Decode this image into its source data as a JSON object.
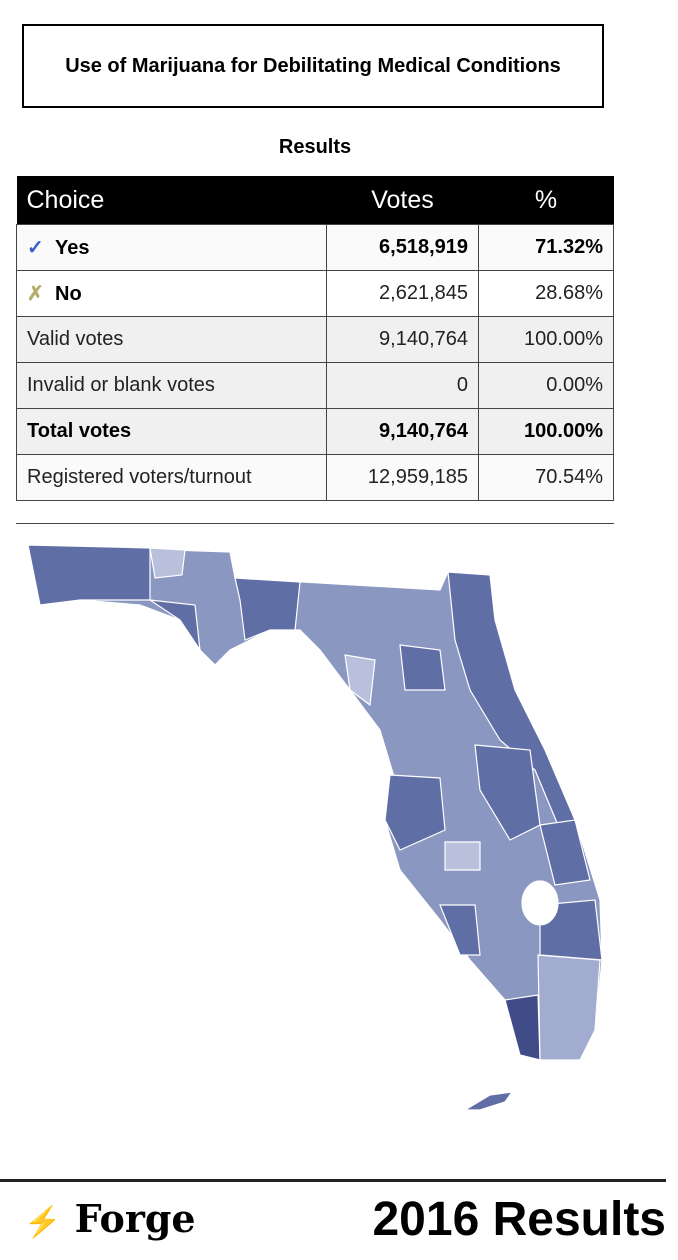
{
  "header": {
    "title": "Use of Marijuana for Debilitating Medical Conditions",
    "caption": "Results"
  },
  "table": {
    "columns": [
      "Choice",
      "Votes",
      "%"
    ],
    "rows": [
      [
        "Yes",
        "6,518,919",
        "71.32%"
      ],
      [
        "No",
        "2,621,845",
        "28.68%"
      ],
      [
        "Valid votes",
        "9,140,764",
        "100.00%"
      ],
      [
        "Invalid or blank votes",
        "0",
        "0.00%"
      ],
      [
        "Total votes",
        "9,140,764",
        "100.00%"
      ],
      [
        "Registered voters/turnout",
        "12,959,185",
        "70.54%"
      ]
    ]
  },
  "footer": {
    "brand": "Forge",
    "label": "2016 Results"
  }
}
